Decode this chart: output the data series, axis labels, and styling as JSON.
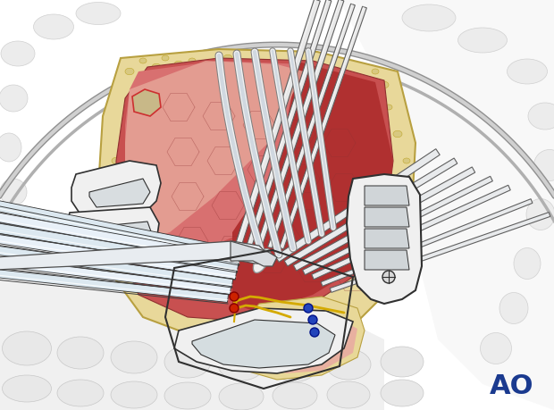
{
  "bg_color": "#ffffff",
  "ao_text": "AO",
  "ao_color": "#1a3a8f",
  "ao_fontsize": 22,
  "figsize": [
    6.2,
    4.59
  ],
  "dpi": 100,
  "bone_yellow": "#e8d89a",
  "muscle_red": "#c04848",
  "muscle_light": "#d47070",
  "muscle_pale": "#e8a090",
  "tissue_pink": "#f0c8b8",
  "instrument_white": "#f0f0f0",
  "instrument_gray": "#d0d8e0",
  "instrument_outline": "#303030",
  "bg_gray": "#e8e8e8",
  "body_outline": "#cccccc",
  "yellow_wire": "#d4aa00",
  "screw_red": "#cc2200",
  "screw_blue": "#2244bb",
  "rib_line": "#c8c8c8",
  "vertebra_gray": "#b0b0b0"
}
